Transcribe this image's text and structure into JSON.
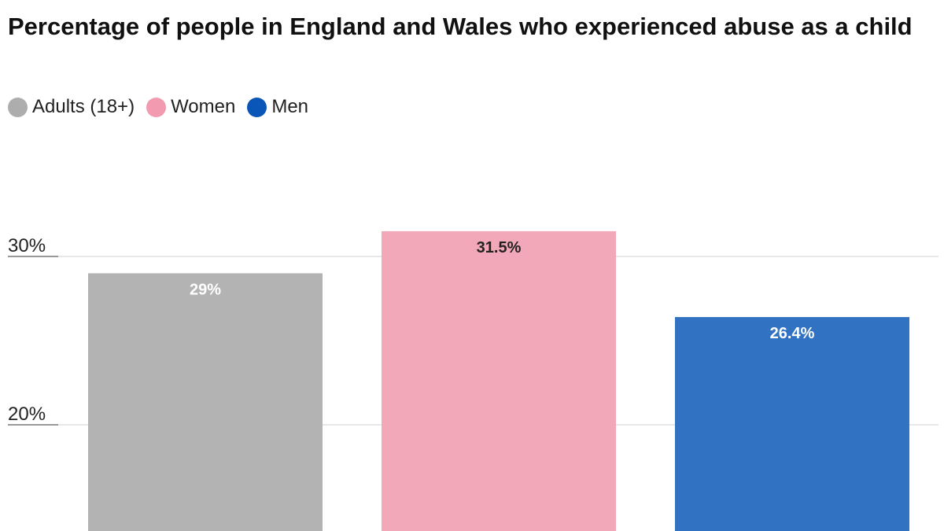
{
  "chart_data": {
    "type": "bar",
    "title": "Percentage of people in England and Wales who experienced abuse as a child",
    "categories": [
      "Adults (18+)",
      "Women",
      "Men"
    ],
    "values": [
      29,
      31.5,
      26.4
    ],
    "value_labels": [
      "29%",
      "31.5%",
      "26.4%"
    ],
    "colors": [
      "#b3b3b3",
      "#f2a8b8",
      "#3173c2"
    ],
    "legend_colors": [
      "#adadad",
      "#f29bb0",
      "#0a55b8"
    ],
    "label_colors": [
      "#ffffff",
      "#222222",
      "#ffffff"
    ],
    "yticks": [
      20,
      30
    ],
    "ytick_labels": [
      "20%",
      "30%"
    ],
    "legend_position": "top-left",
    "grid": true
  }
}
